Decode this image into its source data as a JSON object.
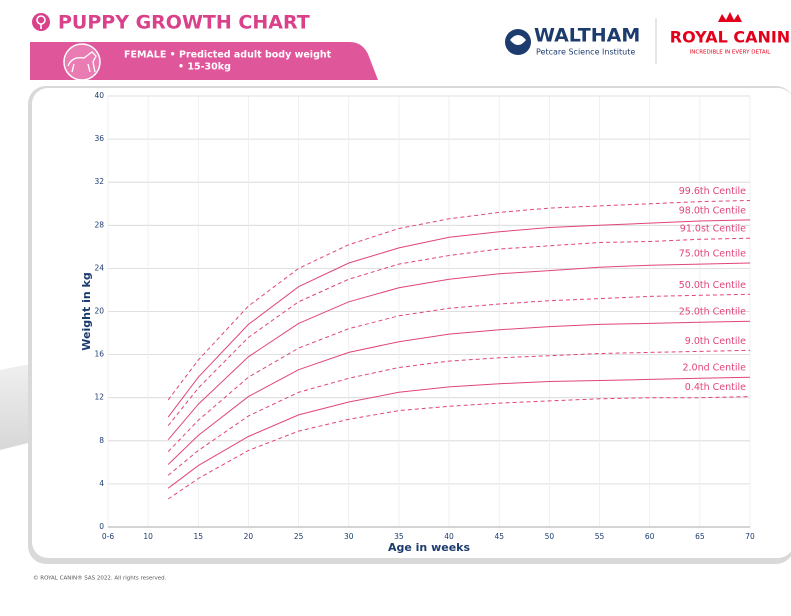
{
  "header": {
    "title": "PUPPY GROWTH CHART",
    "subtitle_line1": "FEMALE • Predicted adult body weight",
    "subtitle_line2": "• 15-30kg"
  },
  "logos": {
    "waltham": "WALTHAM",
    "waltham_sub": "Petcare Science Institute",
    "royal_canin": "ROYAL CANIN",
    "royal_canin_sub": "INCREDIBLE IN EVERY DETAIL"
  },
  "footer": "© ROYAL CANIN® SAS 2022. All rights reserved.",
  "chart_data": {
    "type": "line",
    "x_label": "Age in weeks",
    "y_label": "Weight in kg",
    "x": [
      12,
      15,
      20,
      25,
      30,
      35,
      40,
      45,
      50,
      55,
      60,
      65,
      70
    ],
    "xlim": [
      6,
      70
    ],
    "xticks": [
      {
        "value": 6,
        "label": "0-6"
      },
      10,
      15,
      20,
      25,
      30,
      35,
      40,
      45,
      50,
      55,
      60,
      65,
      70
    ],
    "ylim": [
      0,
      40
    ],
    "yticks": [
      0,
      4,
      8,
      12,
      16,
      20,
      24,
      28,
      32,
      36,
      40
    ],
    "grid": true,
    "series": [
      {
        "name": "99.6th Centile",
        "color": "#e0457b",
        "dashed": true,
        "values": [
          11.8,
          15.5,
          20.5,
          24.0,
          26.2,
          27.7,
          28.6,
          29.2,
          29.6,
          29.8,
          30.0,
          30.2,
          30.3
        ]
      },
      {
        "name": "98.0th Centile",
        "color": "#e0457b",
        "dashed": false,
        "values": [
          10.2,
          13.9,
          18.8,
          22.3,
          24.5,
          25.9,
          26.9,
          27.4,
          27.8,
          28.0,
          28.2,
          28.4,
          28.5
        ]
      },
      {
        "name": "91.0st Centile",
        "color": "#e0457b",
        "dashed": true,
        "values": [
          9.4,
          12.9,
          17.6,
          20.9,
          23.0,
          24.4,
          25.2,
          25.8,
          26.1,
          26.4,
          26.5,
          26.7,
          26.8
        ]
      },
      {
        "name": "75.0th Centile",
        "color": "#e0457b",
        "dashed": false,
        "values": [
          8.1,
          11.4,
          15.8,
          18.9,
          20.9,
          22.2,
          23.0,
          23.5,
          23.8,
          24.1,
          24.3,
          24.4,
          24.5
        ]
      },
      {
        "name": "50.0th Centile",
        "color": "#e0457b",
        "dashed": true,
        "values": [
          7.0,
          9.9,
          13.9,
          16.6,
          18.4,
          19.6,
          20.3,
          20.7,
          21.0,
          21.2,
          21.4,
          21.5,
          21.6
        ]
      },
      {
        "name": "25.0th Centile",
        "color": "#e0457b",
        "dashed": false,
        "values": [
          5.8,
          8.5,
          12.1,
          14.6,
          16.2,
          17.2,
          17.9,
          18.3,
          18.6,
          18.8,
          18.9,
          19.0,
          19.1
        ]
      },
      {
        "name": "9.0th Centile",
        "color": "#e0457b",
        "dashed": true,
        "values": [
          4.8,
          7.1,
          10.3,
          12.5,
          13.8,
          14.8,
          15.4,
          15.7,
          15.9,
          16.1,
          16.2,
          16.3,
          16.4
        ]
      },
      {
        "name": "2.0nd Centile",
        "color": "#e0457b",
        "dashed": false,
        "values": [
          3.6,
          5.7,
          8.4,
          10.4,
          11.6,
          12.5,
          13.0,
          13.3,
          13.5,
          13.6,
          13.7,
          13.8,
          13.9
        ]
      },
      {
        "name": "0.4th Centile",
        "color": "#e0457b",
        "dashed": true,
        "values": [
          2.6,
          4.5,
          7.1,
          8.9,
          10.0,
          10.8,
          11.2,
          11.5,
          11.7,
          11.9,
          12.0,
          12.0,
          12.1
        ]
      }
    ]
  }
}
